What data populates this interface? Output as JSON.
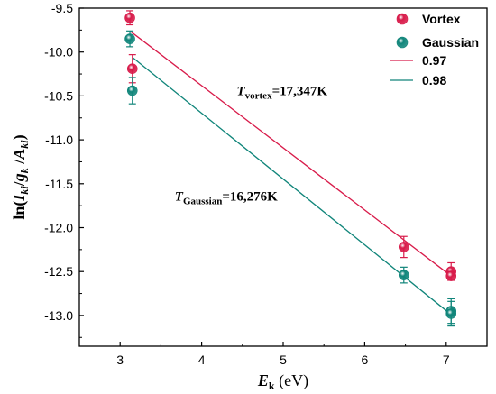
{
  "chart_data": {
    "type": "scatter",
    "xlabel_main": "E",
    "xlabel_sub": "k",
    "xlabel_unit": " (eV)",
    "ylabel": "ln(Iki/gk/Aki)",
    "ylabel_parts": [
      "ln(",
      "I",
      "ki",
      "/",
      "g",
      "k",
      " /",
      "A",
      "ki",
      ")"
    ],
    "xlim": [
      2.5,
      7.5
    ],
    "ylim": [
      -13.35,
      -9.5
    ],
    "xticks": [
      3,
      4,
      5,
      6,
      7
    ],
    "xtick_labels": [
      "3",
      "4",
      "5",
      "6",
      "7"
    ],
    "yticks": [
      -9.5,
      -10.0,
      -10.5,
      -11.0,
      -11.5,
      -12.0,
      -12.5,
      -13.0
    ],
    "ytick_labels": [
      "-9.5",
      "-10.0",
      "-10.5",
      "-11.0",
      "-11.5",
      "-12.0",
      "-12.5",
      "-13.0"
    ],
    "grid": false,
    "legend_position": "top-right",
    "series": [
      {
        "name": "Vortex",
        "color": "#d81b4a",
        "points": [
          {
            "x": 3.12,
            "y": -9.61,
            "err": 0.08
          },
          {
            "x": 3.15,
            "y": -10.19,
            "err": 0.16
          },
          {
            "x": 6.48,
            "y": -12.22,
            "err": 0.12
          },
          {
            "x": 7.06,
            "y": -12.5,
            "err": 0.1
          },
          {
            "x": 7.06,
            "y": -12.55,
            "err": 0.05
          }
        ]
      },
      {
        "name": "Gaussian",
        "color": "#10857a",
        "points": [
          {
            "x": 3.12,
            "y": -9.85,
            "err": 0.09
          },
          {
            "x": 3.15,
            "y": -10.44,
            "err": 0.15
          },
          {
            "x": 6.48,
            "y": -12.54,
            "err": 0.09
          },
          {
            "x": 7.06,
            "y": -12.95,
            "err": 0.14
          },
          {
            "x": 7.06,
            "y": -12.98,
            "err": 0.14
          }
        ]
      }
    ],
    "fit_lines": [
      {
        "name": "0.97",
        "color": "#d81b4a",
        "x": [
          3.12,
          7.06
        ],
        "y": [
          -9.76,
          -12.55
        ]
      },
      {
        "name": "0.98",
        "color": "#10857a",
        "x": [
          3.15,
          7.06
        ],
        "y": [
          -10.06,
          -12.99
        ]
      }
    ],
    "annotations": [
      {
        "main": "T",
        "sub": "vortex",
        "rest": "=17,347K",
        "x": 4.43,
        "y": -10.49
      },
      {
        "main": "T",
        "sub": "Gaussian",
        "rest": "=16,276K",
        "x": 3.67,
        "y": -11.69
      }
    ]
  }
}
